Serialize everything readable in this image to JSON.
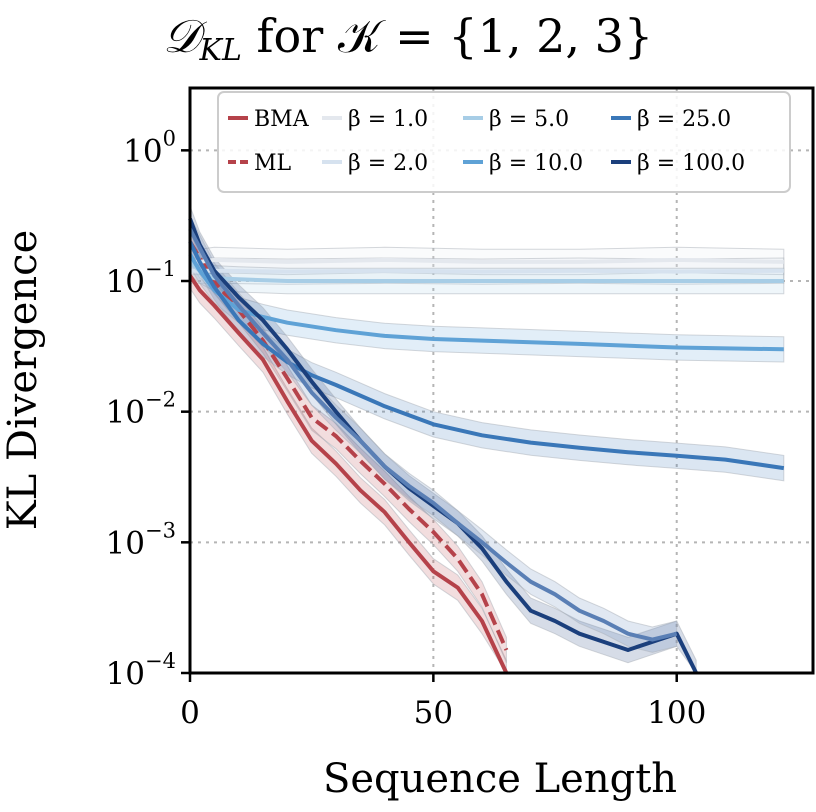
{
  "chart_data": {
    "type": "line",
    "title": "𝒟_KL for 𝒦 = {1, 2, 3}",
    "title_parts": {
      "main": "𝒟",
      "sub": "KL",
      "rest": " for 𝒦 = {1, 2, 3}"
    },
    "xlabel": "Sequence Length",
    "ylabel": "KL Divergence",
    "xlim": [
      0,
      128
    ],
    "ylim": [
      0.0001,
      3.0
    ],
    "yscale": "log",
    "grid": true,
    "legend_position": "top",
    "x_ticks": [
      0,
      50,
      100
    ],
    "y_ticks": [
      {
        "value": 1,
        "base": "10",
        "exp": "0"
      },
      {
        "value": 0.1,
        "base": "10",
        "exp": "−1"
      },
      {
        "value": 0.01,
        "base": "10",
        "exp": "−2"
      },
      {
        "value": 0.001,
        "base": "10",
        "exp": "−3"
      },
      {
        "value": 0.0001,
        "base": "10",
        "exp": "−4"
      }
    ],
    "series": [
      {
        "name": "BMA",
        "color": "#b5424a",
        "dash": false,
        "x": [
          0,
          2,
          5,
          10,
          15,
          20,
          25,
          30,
          35,
          40,
          45,
          50,
          55,
          60,
          65
        ],
        "y": [
          0.11,
          0.085,
          0.065,
          0.04,
          0.025,
          0.012,
          0.006,
          0.004,
          0.0025,
          0.0017,
          0.001,
          0.0006,
          0.00045,
          0.00025,
          0.0001
        ]
      },
      {
        "name": "ML",
        "color": "#b5424a",
        "dash": true,
        "x": [
          0,
          2,
          5,
          10,
          15,
          20,
          25,
          30,
          35,
          40,
          45,
          50,
          55,
          60,
          65
        ],
        "y": [
          0.2,
          0.15,
          0.1,
          0.06,
          0.035,
          0.018,
          0.009,
          0.0065,
          0.0042,
          0.0028,
          0.0018,
          0.0012,
          0.00075,
          0.0004,
          0.00015
        ]
      },
      {
        "name": "β = 1.0",
        "color": "#e4e8ee",
        "dash": false,
        "x": [
          0,
          2,
          5,
          20,
          40,
          60,
          80,
          100,
          122
        ],
        "y": [
          0.14,
          0.14,
          0.145,
          0.14,
          0.145,
          0.14,
          0.14,
          0.145,
          0.14
        ]
      },
      {
        "name": "β = 2.0",
        "color": "#d6e2ef",
        "dash": false,
        "x": [
          0,
          2,
          5,
          20,
          40,
          60,
          80,
          100,
          122
        ],
        "y": [
          0.12,
          0.12,
          0.12,
          0.118,
          0.12,
          0.118,
          0.12,
          0.118,
          0.12
        ]
      },
      {
        "name": "β = 5.0",
        "color": "#a7cde6",
        "dash": false,
        "x": [
          0,
          2,
          5,
          10,
          20,
          30,
          40,
          50,
          60,
          80,
          100,
          122
        ],
        "y": [
          0.14,
          0.12,
          0.105,
          0.103,
          0.1,
          0.1,
          0.1,
          0.1,
          0.1,
          0.1,
          0.1,
          0.1
        ]
      },
      {
        "name": "β = 10.0",
        "color": "#5fa2d6",
        "dash": false,
        "x": [
          0,
          2,
          5,
          10,
          15,
          20,
          30,
          40,
          50,
          60,
          80,
          100,
          122
        ],
        "y": [
          0.16,
          0.12,
          0.085,
          0.06,
          0.053,
          0.048,
          0.042,
          0.038,
          0.036,
          0.035,
          0.033,
          0.031,
          0.03
        ]
      },
      {
        "name": "β = 25.0",
        "color": "#3a77b8",
        "dash": false,
        "x": [
          0,
          2,
          5,
          10,
          15,
          20,
          25,
          30,
          40,
          50,
          60,
          70,
          80,
          90,
          100,
          110,
          122
        ],
        "y": [
          0.2,
          0.14,
          0.09,
          0.05,
          0.033,
          0.024,
          0.019,
          0.016,
          0.011,
          0.008,
          0.0066,
          0.0058,
          0.0053,
          0.0049,
          0.0046,
          0.0043,
          0.0037
        ]
      },
      {
        "name": "β = 100.0",
        "color": "#1b3f7c",
        "dash": false,
        "x": [
          0,
          2,
          5,
          10,
          15,
          20,
          25,
          30,
          35,
          40,
          45,
          50,
          55,
          60,
          65,
          70,
          75,
          80,
          90,
          100,
          104
        ],
        "y": [
          0.3,
          0.19,
          0.12,
          0.075,
          0.05,
          0.03,
          0.017,
          0.01,
          0.006,
          0.0038,
          0.0026,
          0.0019,
          0.0014,
          0.0009,
          0.0005,
          0.0003,
          0.00025,
          0.0002,
          0.00015,
          0.0002,
          0.0001
        ]
      },
      {
        "name": "",
        "color": "#5a7fb5",
        "dash": false,
        "x": [
          0,
          5,
          10,
          15,
          20,
          25,
          30,
          35,
          40,
          45,
          50,
          55,
          60,
          65,
          70,
          75,
          80,
          85,
          90,
          95,
          100
        ],
        "y": [
          0.25,
          0.11,
          0.065,
          0.04,
          0.025,
          0.014,
          0.009,
          0.006,
          0.0038,
          0.0027,
          0.002,
          0.0014,
          0.001,
          0.0007,
          0.0005,
          0.0004,
          0.0003,
          0.00025,
          0.0002,
          0.00018,
          0.0002
        ]
      }
    ]
  }
}
